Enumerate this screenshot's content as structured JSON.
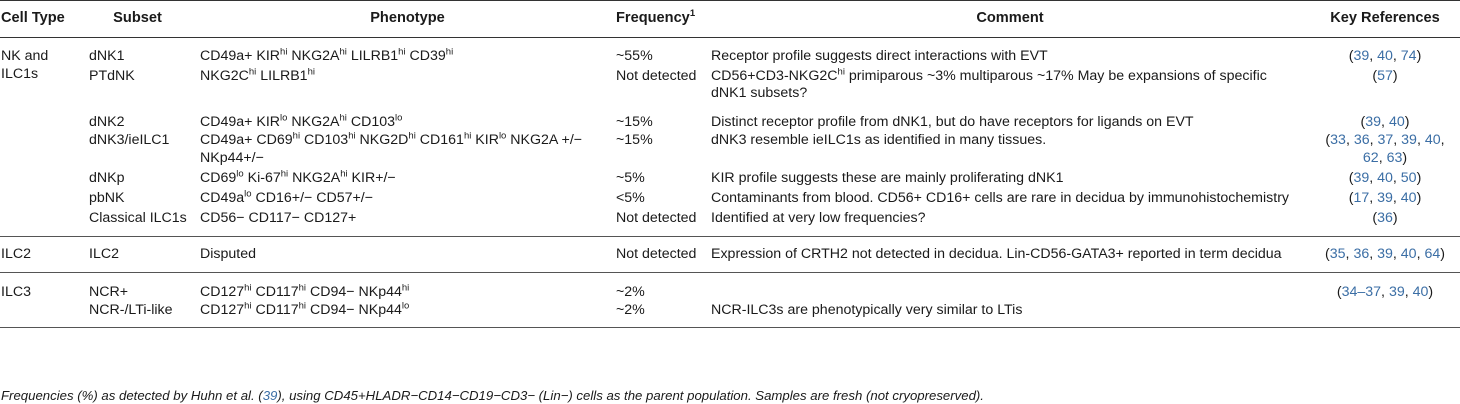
{
  "header": {
    "cell_type": "Cell Type",
    "subset": "Subset",
    "phenotype": "Phenotype",
    "frequency": "Frequency",
    "frequency_sup": "1",
    "comment": "Comment",
    "key_references": "Key References"
  },
  "rows": [
    {
      "cell_type_l1": "NK and",
      "cell_type_l2": "ILC1s",
      "subset": "dNK1",
      "frequency": "~55%",
      "comment": "Receptor profile suggests direct interactions with EVT",
      "refs": [
        "39",
        "40",
        "74"
      ]
    },
    {
      "subset": "PTdNK",
      "frequency": "Not detected",
      "comment": " CD56+CD3-NKG2C",
      "comment_sup": "hi",
      "comment_rest": " primiparous ~3% multiparous ~17% May be expansions of specific dNK1 subsets?",
      "refs": [
        "57"
      ]
    },
    {
      "subset": "dNK2",
      "frequency": "~15%",
      "comment": " Distinct receptor profile from dNK1, but do have receptors for ligands on EVT",
      "refs": [
        "39",
        "40"
      ]
    },
    {
      "subset": "dNK3/ieILC1",
      "frequency": "~15%",
      "comment": "dNK3 resemble ieILC1s as identified in many tissues.",
      "refs_l1": [
        "33",
        "36",
        "37",
        "39",
        "40"
      ],
      "refs_l2": [
        "62",
        "63"
      ]
    },
    {
      "subset": "dNKp",
      "frequency": "~5%",
      "comment": " KIR profile suggests these are mainly proliferating dNK1",
      "refs": [
        "39",
        "40",
        "50"
      ]
    },
    {
      "subset": "pbNK",
      "frequency": "<5%",
      "comment": "Contaminants from blood. CD56+ CD16+ cells are rare in decidua by immunohistochemistry",
      "refs": [
        "17",
        "39",
        "40"
      ]
    },
    {
      "subset": "Classical ILC1s",
      "phenotype": "CD56− CD117− CD127+",
      "frequency": "Not detected",
      "comment": "Identified at very low frequencies?",
      "refs": [
        "36"
      ]
    },
    {
      "cell_type": "ILC2",
      "subset": "ILC2",
      "phenotype": "Disputed",
      "frequency": "Not detected",
      "comment": "Expression of CRTH2 not detected in decidua. Lin-CD56-GATA3+ reported in term decidua",
      "refs": [
        "35",
        "36",
        "39",
        "40",
        "64"
      ]
    },
    {
      "cell_type": "ILC3",
      "subset": "NCR+",
      "frequency": "~2%",
      "comment": "",
      "refs": [
        "34–37",
        "39",
        "40"
      ]
    },
    {
      "subset": "NCR-/LTi-like",
      "frequency": "~2%",
      "comment": "NCR-ILC3s are phenotypically very similar to LTis"
    }
  ],
  "footnote": {
    "before": "Frequencies (%) as detected by Huhn et al. (",
    "ref": "39",
    "after": "), using CD45+HLADR−CD14−CD19−CD3− (Lin−) cells as the parent population. Samples are fresh (not cryopreserved)."
  },
  "colors": {
    "text": "#1a1a1a",
    "reference_link": "#3b6ea5",
    "rule": "#333333"
  }
}
